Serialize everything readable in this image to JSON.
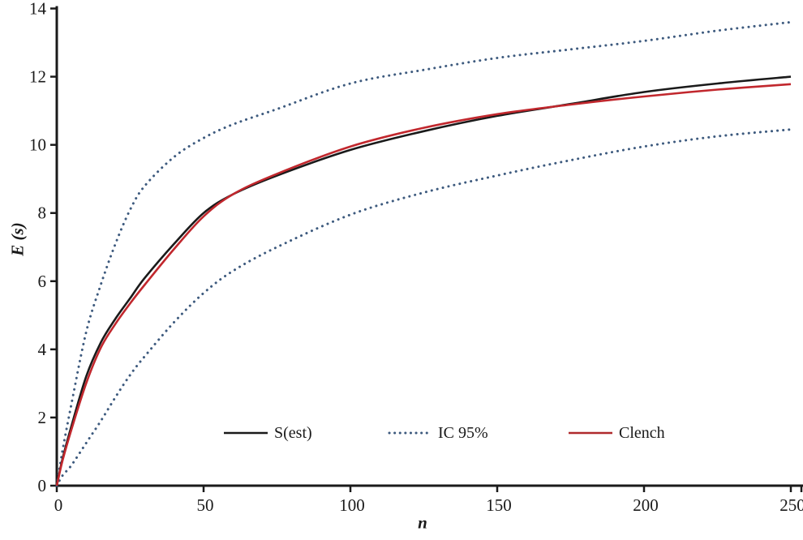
{
  "figure": {
    "background_color": "#ffffff",
    "text_color": "#1a1a1a"
  },
  "axes": {
    "x_label": "n",
    "y_label": "E (s)"
  },
  "legend": {
    "items": [
      {
        "label": "S(est)",
        "color": "#1a1a1a",
        "style": "solid"
      },
      {
        "label": "IC 95%",
        "color": "#3d5a7e",
        "style": "dotted"
      },
      {
        "label": "Clench",
        "color": "#b02a2d",
        "style": "solid"
      }
    ]
  },
  "chart_data": {
    "type": "line",
    "title": "",
    "xlabel": "n",
    "ylabel": "E (s)",
    "xlim": [
      0,
      250
    ],
    "ylim": [
      0,
      14
    ],
    "x_ticks": [
      0,
      50,
      100,
      150,
      200,
      250
    ],
    "y_ticks": [
      0,
      2,
      4,
      6,
      8,
      10,
      12,
      14
    ],
    "grid": false,
    "legend_position": "inside-bottom-center",
    "axis_color": "#1a1a1a",
    "x": [
      0,
      2,
      5,
      10,
      15,
      20,
      25,
      30,
      40,
      50,
      60,
      75,
      100,
      125,
      150,
      175,
      200,
      225,
      250
    ],
    "series": [
      {
        "id": "ic95_upper",
        "name": "IC 95% (upper bound)",
        "color": "#3d5a7e",
        "style": "dotted",
        "width": 3,
        "values": [
          0,
          1.05,
          2.4,
          4.5,
          5.9,
          7.1,
          8.1,
          8.8,
          9.65,
          10.2,
          10.6,
          11.05,
          11.8,
          12.2,
          12.55,
          12.8,
          13.05,
          13.35,
          13.6
        ]
      },
      {
        "id": "ic95_lower",
        "name": "IC 95% (lower bound)",
        "color": "#3d5a7e",
        "style": "dotted",
        "width": 3,
        "values": [
          0,
          0.3,
          0.6,
          1.25,
          1.9,
          2.6,
          3.25,
          3.8,
          4.8,
          5.65,
          6.3,
          7.0,
          7.95,
          8.6,
          9.1,
          9.55,
          9.95,
          10.25,
          10.45
        ]
      },
      {
        "id": "s_est",
        "name": "S(est)",
        "color": "#1a1a1a",
        "style": "solid",
        "width": 2.6,
        "values": [
          0,
          0.8,
          1.75,
          3.2,
          4.2,
          4.9,
          5.5,
          6.1,
          7.1,
          8.0,
          8.55,
          9.1,
          9.85,
          10.4,
          10.85,
          11.2,
          11.55,
          11.8,
          12.0
        ]
      },
      {
        "id": "clench",
        "name": "Clench",
        "color": "#c1272d",
        "style": "solid",
        "width": 2.6,
        "values": [
          0,
          0.75,
          1.65,
          3.0,
          4.05,
          4.75,
          5.35,
          5.9,
          6.95,
          7.9,
          8.55,
          9.15,
          9.95,
          10.5,
          10.9,
          11.18,
          11.42,
          11.62,
          11.78
        ]
      }
    ]
  }
}
